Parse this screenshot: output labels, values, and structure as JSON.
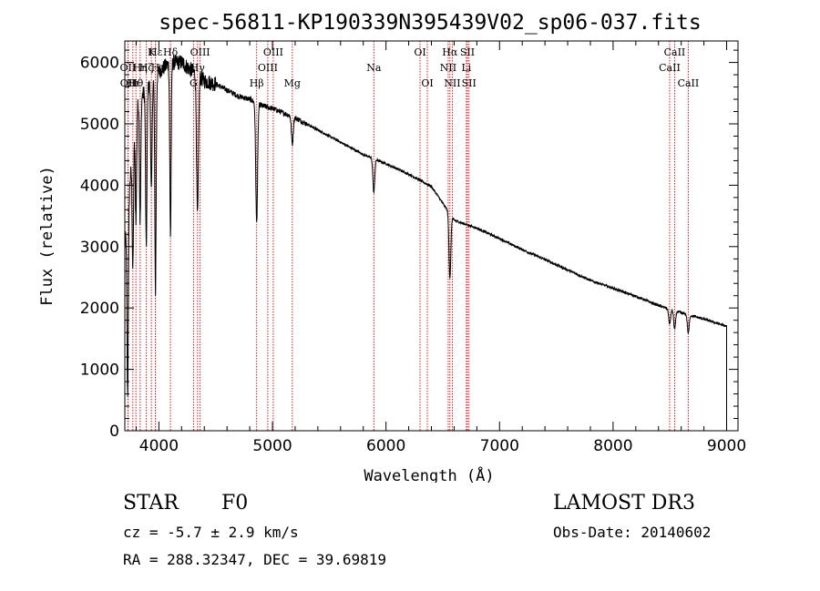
{
  "chart_data": {
    "type": "line",
    "title": "spec-56811-KP190339N395439V02_sp06-037.fits",
    "xlabel": "Wavelength (Å)",
    "ylabel": "Flux (relative)",
    "xlim": [
      3700,
      9100
    ],
    "ylim": [
      0,
      6350
    ],
    "xticks": [
      4000,
      5000,
      6000,
      7000,
      8000,
      9000
    ],
    "yticks": [
      0,
      1000,
      2000,
      3000,
      4000,
      5000,
      6000
    ],
    "spectral_lines": [
      {
        "name": "Hδ",
        "wavelength": 4102,
        "row": 1
      },
      {
        "name": "K",
        "wavelength": 3934,
        "row": 1
      },
      {
        "name": "Hε",
        "wavelength": 3970,
        "row": 1
      },
      {
        "name": "OIII",
        "wavelength": 4363,
        "row": 1
      },
      {
        "name": "OII",
        "wavelength": 3727,
        "row": 2
      },
      {
        "name": "Hη",
        "wavelength": 3835,
        "row": 2
      },
      {
        "name": "Hζ",
        "wavelength": 3889,
        "row": 2
      },
      {
        "name": "H",
        "wavelength": 3969,
        "row": 2
      },
      {
        "name": "Hγ",
        "wavelength": 4340,
        "row": 2
      },
      {
        "name": "OII",
        "wavelength": 3729,
        "row": 3
      },
      {
        "name": "Hθ",
        "wavelength": 3798,
        "row": 3
      },
      {
        "name": "Hι",
        "wavelength": 3771,
        "row": 3
      },
      {
        "name": "G",
        "wavelength": 4305,
        "row": 3
      },
      {
        "name": "OIII",
        "wavelength": 5007,
        "row": 1
      },
      {
        "name": "OIII",
        "wavelength": 4959,
        "row": 2
      },
      {
        "name": "Hβ",
        "wavelength": 4861,
        "row": 3
      },
      {
        "name": "Mg",
        "wavelength": 5175,
        "row": 3
      },
      {
        "name": "Na",
        "wavelength": 5893,
        "row": 2
      },
      {
        "name": "OI",
        "wavelength": 6300,
        "row": 1
      },
      {
        "name": "OI",
        "wavelength": 6364,
        "row": 3
      },
      {
        "name": "Hα",
        "wavelength": 6563,
        "row": 1
      },
      {
        "name": "NII",
        "wavelength": 6548,
        "row": 2
      },
      {
        "name": "NII",
        "wavelength": 6584,
        "row": 3
      },
      {
        "name": "SII",
        "wavelength": 6717,
        "row": 1
      },
      {
        "name": "Li",
        "wavelength": 6708,
        "row": 2
      },
      {
        "name": "SII",
        "wavelength": 6731,
        "row": 3
      },
      {
        "name": "CaII",
        "wavelength": 8542,
        "row": 1
      },
      {
        "name": "CaII",
        "wavelength": 8498,
        "row": 2
      },
      {
        "name": "CaII",
        "wavelength": 8662,
        "row": 3
      }
    ],
    "continuum": [
      [
        3700,
        3000
      ],
      [
        3800,
        5300
      ],
      [
        3900,
        5600
      ],
      [
        4000,
        5850
      ],
      [
        4100,
        6000
      ],
      [
        4200,
        6000
      ],
      [
        4300,
        5850
      ],
      [
        4400,
        5700
      ],
      [
        4500,
        5650
      ],
      [
        4600,
        5550
      ],
      [
        4700,
        5450
      ],
      [
        4800,
        5400
      ],
      [
        4900,
        5300
      ],
      [
        5000,
        5250
      ],
      [
        5200,
        5100
      ],
      [
        5400,
        4900
      ],
      [
        5600,
        4700
      ],
      [
        5800,
        4500
      ],
      [
        6000,
        4350
      ],
      [
        6200,
        4180
      ],
      [
        6400,
        3980
      ],
      [
        6600,
        3430
      ],
      [
        6800,
        3300
      ],
      [
        7000,
        3130
      ],
      [
        7200,
        2950
      ],
      [
        7400,
        2790
      ],
      [
        7600,
        2620
      ],
      [
        7800,
        2450
      ],
      [
        8000,
        2320
      ],
      [
        8200,
        2190
      ],
      [
        8400,
        2040
      ],
      [
        8600,
        1920
      ],
      [
        8800,
        1820
      ],
      [
        9000,
        1700
      ]
    ],
    "absorption": [
      {
        "wavelength": 3725,
        "depth": 3000
      },
      {
        "wavelength": 3771,
        "depth": 2000
      },
      {
        "wavelength": 3798,
        "depth": 1800
      },
      {
        "wavelength": 3835,
        "depth": 2000
      },
      {
        "wavelength": 3889,
        "depth": 2600
      },
      {
        "wavelength": 3934,
        "depth": 1800
      },
      {
        "wavelength": 3970,
        "depth": 3500
      },
      {
        "wavelength": 4102,
        "depth": 2800
      },
      {
        "wavelength": 4340,
        "depth": 2300
      },
      {
        "wavelength": 4861,
        "depth": 1950
      },
      {
        "wavelength": 5175,
        "depth": 450
      },
      {
        "wavelength": 5893,
        "depth": 550
      },
      {
        "wavelength": 6563,
        "depth": 1050
      },
      {
        "wavelength": 8498,
        "depth": 250
      },
      {
        "wavelength": 8542,
        "depth": 300
      },
      {
        "wavelength": 8662,
        "depth": 300
      }
    ]
  },
  "info": {
    "object_class": "STAR",
    "subclass": "F0",
    "cz": "cz = -5.7 ± 2.9 km/s",
    "coords": "RA = 288.32347, DEC =  39.69819",
    "survey": "LAMOST DR3",
    "obs_date": "Obs-Date: 20140602"
  },
  "colors": {
    "spectrum": "#000000",
    "lines": "#cc2222",
    "axes": "#000000"
  }
}
